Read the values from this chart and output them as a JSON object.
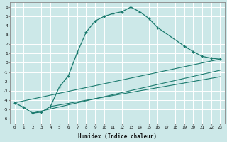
{
  "xlabel": "Humidex (Indice chaleur)",
  "bg_color": "#cce8e8",
  "grid_color": "#ffffff",
  "line_color": "#1a7a6e",
  "xlim": [
    -0.5,
    23.5
  ],
  "ylim": [
    -6.5,
    6.5
  ],
  "xticks": [
    0,
    1,
    2,
    3,
    4,
    5,
    6,
    7,
    8,
    9,
    10,
    11,
    12,
    13,
    14,
    15,
    16,
    17,
    18,
    19,
    20,
    21,
    22,
    23
  ],
  "yticks": [
    -6,
    -5,
    -4,
    -3,
    -2,
    -1,
    0,
    1,
    2,
    3,
    4,
    5,
    6
  ],
  "curve1_x": [
    0,
    1,
    2,
    3,
    4,
    5,
    6,
    7,
    8,
    9,
    10,
    11,
    12,
    13,
    14,
    15,
    16,
    19,
    20,
    21,
    22,
    23
  ],
  "curve1_y": [
    -4.3,
    -4.8,
    -5.4,
    -5.3,
    -4.7,
    -2.6,
    -1.4,
    1.1,
    3.3,
    4.5,
    5.0,
    5.3,
    5.5,
    6.0,
    5.5,
    4.8,
    3.8,
    1.8,
    1.2,
    0.7,
    0.5,
    0.4
  ],
  "line1_x": [
    0,
    23
  ],
  "line1_y": [
    -4.3,
    0.4
  ],
  "line2_x": [
    2,
    23
  ],
  "line2_y": [
    -5.4,
    -0.8
  ],
  "line3_x": [
    4,
    23
  ],
  "line3_y": [
    -4.7,
    -1.5
  ]
}
